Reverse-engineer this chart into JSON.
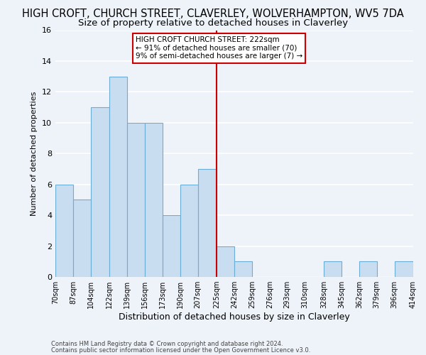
{
  "title": "HIGH CROFT, CHURCH STREET, CLAVERLEY, WOLVERHAMPTON, WV5 7DA",
  "subtitle": "Size of property relative to detached houses in Claverley",
  "xlabel": "Distribution of detached houses by size in Claverley",
  "ylabel": "Number of detached properties",
  "footer_line1": "Contains HM Land Registry data © Crown copyright and database right 2024.",
  "footer_line2": "Contains public sector information licensed under the Open Government Licence v3.0.",
  "bin_edges": [
    70,
    87,
    104,
    122,
    139,
    156,
    173,
    190,
    207,
    225,
    242,
    259,
    276,
    293,
    310,
    328,
    345,
    362,
    379,
    396,
    414
  ],
  "bar_heights": [
    6,
    5,
    11,
    13,
    10,
    10,
    4,
    6,
    7,
    2,
    1,
    0,
    0,
    0,
    0,
    1,
    0,
    1,
    0,
    1
  ],
  "bar_color": "#c9ddf0",
  "bar_edge_color": "#6aaed6",
  "reference_line_x": 225,
  "reference_line_color": "#cc0000",
  "ylim": [
    0,
    16
  ],
  "yticks": [
    0,
    2,
    4,
    6,
    8,
    10,
    12,
    14,
    16
  ],
  "annotation_title": "HIGH CROFT CHURCH STREET: 222sqm",
  "annotation_line1": "← 91% of detached houses are smaller (70)",
  "annotation_line2": "9% of semi-detached houses are larger (7) →",
  "annotation_box_edge_color": "#cc0000",
  "annotation_box_face_color": "#ffffff",
  "bg_color": "#eef2f9",
  "grid_color": "#ffffff",
  "title_fontsize": 10.5,
  "subtitle_fontsize": 9.5
}
